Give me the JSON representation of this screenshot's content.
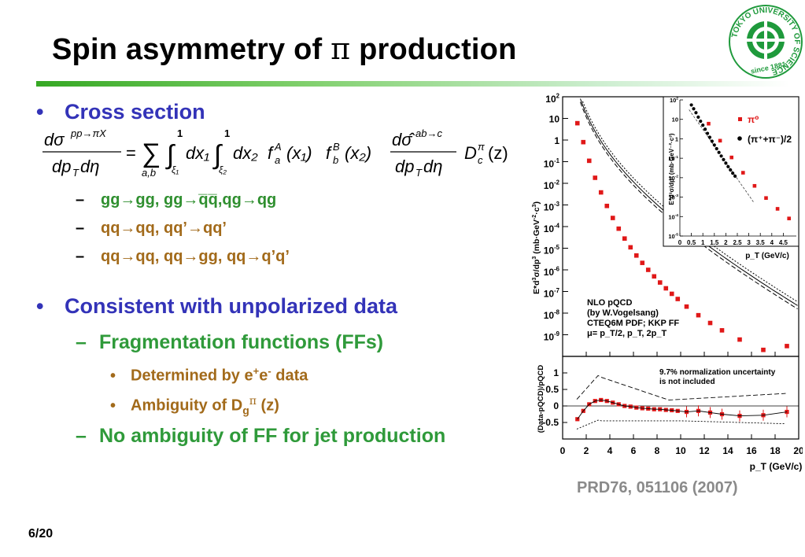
{
  "slide": {
    "title_pre": "Spin asymmetry of ",
    "title_pi": "π",
    "title_post": " production",
    "page_number": "6/20",
    "reference": "PRD76, 051106 (2007)"
  },
  "bullets": {
    "cross_section": "Cross section",
    "cross_section_subitems": [
      "gg→gg, gg→q̅q̅,qg→qg",
      "qq→qq, qq’→qq’",
      "qq→qq, qq→gg, qq→q’q’"
    ],
    "consistent": "Consistent with unpolarized data",
    "ff_heading": "Fragmentation functions (FFs)",
    "ff_item1_pre": "Determined by e",
    "ff_item1_sup1": "+",
    "ff_item1_mid": "e",
    "ff_item1_sup2": "-",
    "ff_item1_post": " data",
    "ff_item2_pre": "Ambiguity of D",
    "ff_item2_sub": "g",
    "ff_item2_sup": "π",
    "ff_item2_post": " (z)",
    "no_ambiguity": "No ambiguity of FF for jet production"
  },
  "icons": {
    "logo": "tokyo-university-of-science-seal-icon",
    "bullet": "bullet-dot-icon",
    "dash": "dash-icon"
  },
  "colors": {
    "heading_blue": "#3333b8",
    "sub_green": "#2f9a3a",
    "sub_brown": "#a26a1a",
    "reference_gray": "#8a8a8a",
    "data_red": "#e01818",
    "logo_green": "#1f9a3c"
  },
  "logo_text": {
    "ring": "TOKYO UNIVERSITY OF SCIENCE",
    "since": "since 1881"
  },
  "formula": {
    "lhs_num": "dσ",
    "lhs_num_sup": "pp→πX",
    "lhs_den": "dp",
    "lhs_den_sub": "T",
    "lhs_den_post": "dη",
    "eq": "=",
    "sum": "∑",
    "sum_sub": "a,b",
    "int": "∫",
    "int_up": "1",
    "int1_low": "ξ₁",
    "int2_low": "ξ₂",
    "dx1": "dx₁",
    "dx2": "dx₂",
    "fa": "f",
    "fa_sup": "A",
    "fa_sub": "a",
    "x1": "(x₁)",
    "fb": "f",
    "fb_sup": "B",
    "fb_sub": "b",
    "x2": "(x₂)",
    "rhs_num": "dσ̂",
    "rhs_num_sup": "ab→c",
    "rhs_den": "dp",
    "rhs_den_sub": "T",
    "rhs_den_post": "dη",
    "D": "D",
    "D_sup": "π",
    "D_sub": "c",
    "Dz": "(z)"
  },
  "chart_data": [
    {
      "type": "scatter",
      "title": "",
      "xlabel": "",
      "ylabel": "E*d³σ/dp³ (mb·GeV⁻²·c³)",
      "ylabel_parts": [
        "E*d",
        "3",
        "σ/dp",
        "3",
        " (mb·GeV",
        "-2",
        "·c",
        "3",
        ")"
      ],
      "yscale": "log",
      "xlim": [
        0,
        20
      ],
      "ylim": [
        1e-10,
        100
      ],
      "y_ticks": [
        {
          "m": "10",
          "e": "2",
          "v": 100
        },
        {
          "m": "10",
          "e": "",
          "v": 10
        },
        {
          "m": "1",
          "e": "",
          "v": 1
        },
        {
          "m": "10",
          "e": "-1",
          "v": 0.1
        },
        {
          "m": "10",
          "e": "-2",
          "v": 0.01
        },
        {
          "m": "10",
          "e": "-3",
          "v": 0.001
        },
        {
          "m": "10",
          "e": "-4",
          "v": 0.0001
        },
        {
          "m": "10",
          "e": "-5",
          "v": 1e-05
        },
        {
          "m": "10",
          "e": "-6",
          "v": 1e-06
        },
        {
          "m": "10",
          "e": "-7",
          "v": 1e-07
        },
        {
          "m": "10",
          "e": "-8",
          "v": 1e-08
        },
        {
          "m": "10",
          "e": "-9",
          "v": 1e-09
        }
      ],
      "series": [
        {
          "x": [
            1.25,
            1.75,
            2.25,
            2.75,
            3.25,
            3.75,
            4.25,
            4.75,
            5.25,
            5.75,
            6.25,
            6.75,
            7.25,
            7.75,
            8.25,
            8.75,
            9.25,
            9.75,
            10.5,
            11.5,
            12.5,
            13.5,
            15,
            17,
            19
          ],
          "y": [
            6,
            0.8,
            0.11,
            0.018,
            0.0038,
            0.0009,
            0.00025,
            8e-05,
            2.8e-05,
            1.1e-05,
            4.6e-06,
            2.1e-06,
            1e-06,
            5e-07,
            2.6e-07,
            1.4e-07,
            7.8e-08,
            4.5e-08,
            2e-08,
            8e-09,
            3.5e-09,
            1.6e-09,
            6e-10,
            2e-10,
            3e-10
          ]
        }
      ],
      "annotations": [
        {
          "text": "NLO pQCD"
        },
        {
          "text": "(by W.Vogelsang)"
        },
        {
          "text": "CTEQ6M PDF; KKP FF"
        },
        {
          "text": "μ= p_T/2, p_T, 2p_T"
        }
      ]
    },
    {
      "type": "scatter",
      "title": "",
      "xlabel": "p_T (GeV/c)",
      "ylabel": "E*d³σ/dp³ (mb·GeV⁻²·c³)",
      "yscale": "log",
      "xlim": [
        0,
        5
      ],
      "ylim": [
        1e-05,
        100
      ],
      "x_ticks": [
        "0",
        "0.5",
        "1",
        "1.5",
        "2",
        "2.5",
        "3",
        "3.5",
        "4",
        "4.5"
      ],
      "y_ticks": [
        {
          "m": "10",
          "e": "2",
          "v": 100
        },
        {
          "m": "10",
          "e": "",
          "v": 10
        },
        {
          "m": "1",
          "e": "",
          "v": 1
        },
        {
          "m": "10",
          "e": "-1",
          "v": 0.1
        },
        {
          "m": "10",
          "e": "-2",
          "v": 0.01
        },
        {
          "m": "10",
          "e": "-3",
          "v": 0.001
        },
        {
          "m": "10",
          "e": "-4",
          "v": 0.0001
        },
        {
          "m": "10",
          "e": "-5",
          "v": 1e-05
        }
      ],
      "series": [
        {
          "name": "π⁰",
          "x": [
            1.25,
            1.75,
            2.25,
            2.75,
            3.25,
            3.75,
            4.25,
            4.75
          ],
          "y": [
            6,
            0.8,
            0.11,
            0.018,
            0.0038,
            0.0009,
            0.00025,
            8e-05
          ]
        },
        {
          "name": "(π⁺+π⁻)/2",
          "x": [
            0.5,
            0.6,
            0.7,
            0.8,
            0.9,
            1.0,
            1.1,
            1.2,
            1.3,
            1.4,
            1.5,
            1.6,
            1.7,
            1.8,
            1.9,
            2.0,
            2.1,
            2.2,
            2.3,
            2.4
          ],
          "y": [
            55,
            35,
            22,
            13,
            8,
            5,
            3.1,
            1.9,
            1.2,
            0.75,
            0.48,
            0.31,
            0.2,
            0.13,
            0.085,
            0.056,
            0.037,
            0.025,
            0.017,
            0.012
          ]
        }
      ]
    },
    {
      "type": "scatter",
      "title": "",
      "xlabel": "p_T (GeV/c)",
      "ylabel": "(Data-pQCD)/pQCD",
      "xlim": [
        0,
        20
      ],
      "ylim": [
        -1,
        1.5
      ],
      "x_ticks": [
        "0",
        "2",
        "4",
        "6",
        "8",
        "10",
        "12",
        "14",
        "16",
        "18",
        "20"
      ],
      "y_ticks": [
        "1",
        "0.5",
        "0",
        "-0.5"
      ],
      "series": [
        {
          "x": [
            1.25,
            1.75,
            2.25,
            2.75,
            3.25,
            3.75,
            4.25,
            4.75,
            5.25,
            5.75,
            6.25,
            6.75,
            7.25,
            7.75,
            8.25,
            8.75,
            9.25,
            9.75,
            10.5,
            11.5,
            12.5,
            13.5,
            15,
            17,
            19
          ],
          "y": [
            -0.4,
            -0.15,
            0.05,
            0.15,
            0.18,
            0.15,
            0.1,
            0.05,
            0.0,
            -0.02,
            -0.05,
            -0.07,
            -0.08,
            -0.1,
            -0.1,
            -0.12,
            -0.13,
            -0.15,
            -0.18,
            -0.15,
            -0.2,
            -0.25,
            -0.3,
            -0.28,
            -0.18
          ]
        }
      ],
      "annotations": [
        {
          "text": "9.7% normalization uncertainty"
        },
        {
          "text": "is not included"
        }
      ]
    }
  ]
}
